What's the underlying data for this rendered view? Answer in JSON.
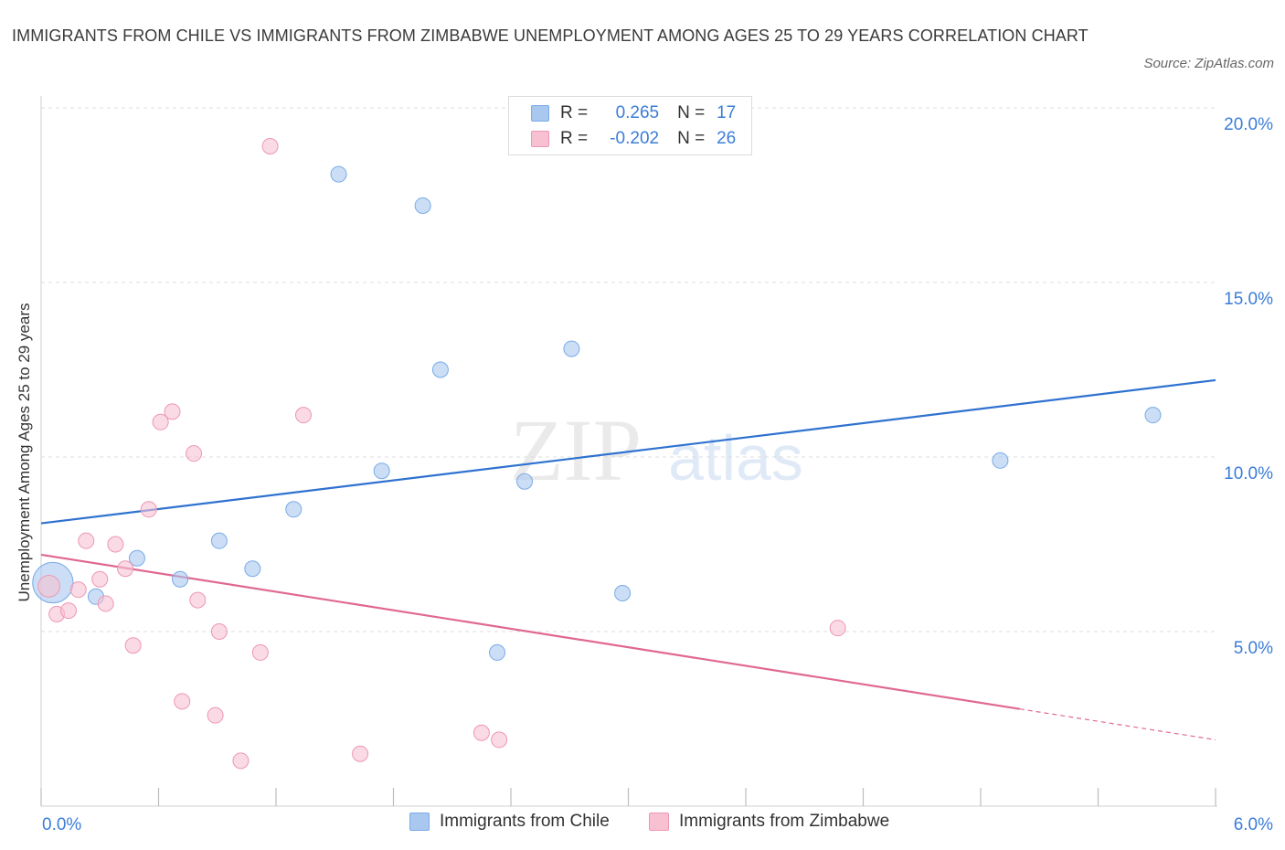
{
  "title": "IMMIGRANTS FROM CHILE VS IMMIGRANTS FROM ZIMBABWE UNEMPLOYMENT AMONG AGES 25 TO 29 YEARS CORRELATION CHART",
  "source": "Source: ZipAtlas.com",
  "watermark": {
    "zip": "ZIP",
    "atlas": "atlas"
  },
  "legend": {
    "r_label": "R =",
    "n_label": "N =",
    "rows": [
      {
        "r": "0.265",
        "n": "17",
        "color": "#a9c8f0",
        "border": "#7aaae6"
      },
      {
        "r": "-0.202",
        "n": "26",
        "color": "#f7c1d2",
        "border": "#ee97b3"
      }
    ]
  },
  "bottom_legend": [
    "Immigrants from Chile",
    "Immigrants from Zimbabwe"
  ],
  "colors": {
    "blue_line": "#2f72d0",
    "pink_line": "#e0688f",
    "tick_text": "#3b7dd8",
    "grid": "#dcdcdc"
  },
  "chart_data": {
    "type": "scatter",
    "xlabel": "",
    "ylabel": "Unemployment Among Ages 25 to 29 years",
    "xlim": [
      0,
      6
    ],
    "ylim": [
      0,
      20
    ],
    "x_tick_labels": [
      "0.0%",
      "6.0%"
    ],
    "y_tick_labels": [
      "5.0%",
      "10.0%",
      "15.0%",
      "20.0%"
    ],
    "y_ticks": [
      5,
      10,
      15,
      20
    ],
    "series": [
      {
        "name": "Immigrants from Chile",
        "r": 0.265,
        "n": 17,
        "points": [
          [
            0.06,
            6.4,
            2.6
          ],
          [
            0.28,
            6.0,
            1
          ],
          [
            0.49,
            7.1,
            1
          ],
          [
            0.71,
            6.5,
            1
          ],
          [
            0.91,
            7.6,
            1
          ],
          [
            1.08,
            6.8,
            1
          ],
          [
            1.29,
            8.5,
            1
          ],
          [
            1.52,
            18.1,
            1
          ],
          [
            1.74,
            9.6,
            1
          ],
          [
            1.95,
            17.2,
            1
          ],
          [
            2.04,
            12.5,
            1
          ],
          [
            2.33,
            4.4,
            1
          ],
          [
            2.47,
            9.3,
            1
          ],
          [
            2.71,
            13.1,
            1
          ],
          [
            2.97,
            6.1,
            1
          ],
          [
            4.9,
            9.9,
            1
          ],
          [
            5.68,
            11.2,
            1
          ]
        ],
        "trend": {
          "x0": 0,
          "y0": 8.1,
          "x1": 6,
          "y1": 12.2,
          "solid_to": 6
        }
      },
      {
        "name": "Immigrants from Zimbabwe",
        "r": -0.202,
        "n": 26,
        "points": [
          [
            0.04,
            6.3,
            1.4
          ],
          [
            0.08,
            5.5,
            1
          ],
          [
            0.14,
            5.6,
            1
          ],
          [
            0.19,
            6.2,
            1
          ],
          [
            0.23,
            7.6,
            1
          ],
          [
            0.3,
            6.5,
            1
          ],
          [
            0.33,
            5.8,
            1
          ],
          [
            0.38,
            7.5,
            1
          ],
          [
            0.43,
            6.8,
            1
          ],
          [
            0.47,
            4.6,
            1
          ],
          [
            0.55,
            8.5,
            1
          ],
          [
            0.61,
            11.0,
            1
          ],
          [
            0.67,
            11.3,
            1
          ],
          [
            0.72,
            3.0,
            1
          ],
          [
            0.78,
            10.1,
            1
          ],
          [
            0.8,
            5.9,
            1
          ],
          [
            0.89,
            2.6,
            1
          ],
          [
            0.91,
            5.0,
            1
          ],
          [
            1.02,
            1.3,
            1
          ],
          [
            1.12,
            4.4,
            1
          ],
          [
            1.17,
            18.9,
            1
          ],
          [
            1.34,
            11.2,
            1
          ],
          [
            1.63,
            1.5,
            1
          ],
          [
            2.25,
            2.1,
            1
          ],
          [
            2.34,
            1.9,
            1
          ],
          [
            4.07,
            5.1,
            1
          ]
        ],
        "trend": {
          "x0": 0,
          "y0": 7.2,
          "x1": 6,
          "y1": 1.9,
          "solid_to": 5
        }
      }
    ]
  }
}
